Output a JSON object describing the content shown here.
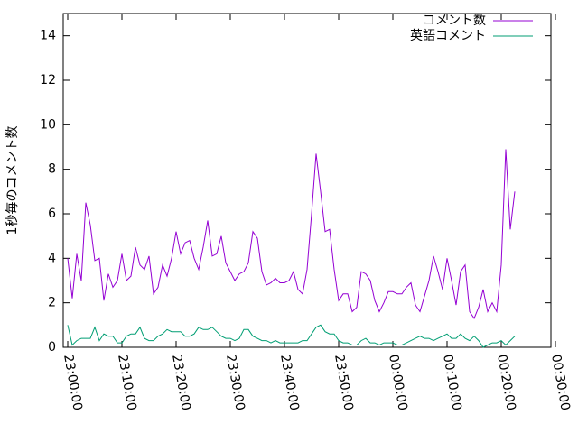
{
  "chart_data": {
    "type": "line",
    "ylabel": "1秒毎のコメント数",
    "x": [
      "23:00:00",
      "23:00:50",
      "23:01:40",
      "23:02:30",
      "23:03:20",
      "23:04:10",
      "23:05:00",
      "23:05:50",
      "23:06:40",
      "23:07:30",
      "23:08:20",
      "23:09:10",
      "23:10:00",
      "23:10:50",
      "23:11:40",
      "23:12:30",
      "23:13:20",
      "23:14:10",
      "23:15:00",
      "23:15:50",
      "23:16:40",
      "23:17:30",
      "23:18:20",
      "23:19:10",
      "23:20:00",
      "23:20:50",
      "23:21:40",
      "23:22:30",
      "23:23:20",
      "23:24:10",
      "23:25:00",
      "23:25:50",
      "23:26:40",
      "23:27:30",
      "23:28:20",
      "23:29:10",
      "23:30:00",
      "23:30:50",
      "23:31:40",
      "23:32:30",
      "23:33:20",
      "23:34:10",
      "23:35:00",
      "23:35:50",
      "23:36:40",
      "23:37:30",
      "23:38:20",
      "23:39:10",
      "23:40:00",
      "23:40:50",
      "23:41:40",
      "23:42:30",
      "23:43:20",
      "23:44:10",
      "23:45:00",
      "23:45:50",
      "23:46:40",
      "23:47:30",
      "23:48:20",
      "23:49:10",
      "23:50:00",
      "23:50:50",
      "23:51:40",
      "23:52:30",
      "23:53:20",
      "23:54:10",
      "23:55:00",
      "23:55:50",
      "23:56:40",
      "23:57:30",
      "23:58:20",
      "23:59:10",
      "00:00:00",
      "00:00:50",
      "00:01:40",
      "00:02:30",
      "00:03:20",
      "00:04:10",
      "00:05:00",
      "00:05:50",
      "00:06:40",
      "00:07:30",
      "00:08:20",
      "00:09:10",
      "00:10:00",
      "00:10:50",
      "00:11:40",
      "00:12:30",
      "00:13:20",
      "00:14:10",
      "00:15:00",
      "00:15:50",
      "00:16:40",
      "00:17:30",
      "00:18:20",
      "00:19:10",
      "00:20:00",
      "00:20:50",
      "00:21:40",
      "00:22:30"
    ],
    "series": [
      {
        "name": "コメント数",
        "color": "#9400d3",
        "values": [
          4.0,
          2.2,
          4.2,
          3.0,
          6.5,
          5.5,
          3.9,
          4.0,
          2.1,
          3.3,
          2.7,
          3.0,
          4.2,
          3.0,
          3.2,
          4.5,
          3.7,
          3.5,
          4.1,
          2.4,
          2.7,
          3.7,
          3.2,
          4.0,
          5.2,
          4.2,
          4.7,
          4.8,
          4.0,
          3.5,
          4.5,
          5.7,
          4.1,
          4.2,
          5.0,
          3.8,
          3.4,
          3.0,
          3.3,
          3.4,
          3.8,
          5.2,
          4.9,
          3.4,
          2.8,
          2.9,
          3.1,
          2.9,
          2.9,
          3.0,
          3.4,
          2.6,
          2.4,
          3.5,
          6.0,
          8.7,
          7.0,
          5.2,
          5.3,
          3.5,
          2.1,
          2.4,
          2.4,
          1.6,
          1.8,
          3.4,
          3.3,
          3.0,
          2.1,
          1.6,
          2.0,
          2.5,
          2.5,
          2.4,
          2.4,
          2.7,
          2.9,
          1.9,
          1.6,
          2.3,
          3.0,
          4.1,
          3.4,
          2.6,
          4.0,
          3.0,
          1.9,
          3.4,
          3.7,
          1.6,
          1.3,
          1.8,
          2.6,
          1.6,
          2.0,
          1.6,
          3.7,
          8.9,
          5.3,
          7.0
        ]
      },
      {
        "name": "英語コメント",
        "color": "#009e73",
        "values": [
          1.0,
          0.1,
          0.3,
          0.4,
          0.4,
          0.4,
          0.9,
          0.3,
          0.6,
          0.5,
          0.5,
          0.2,
          0.2,
          0.5,
          0.6,
          0.6,
          0.9,
          0.4,
          0.3,
          0.3,
          0.5,
          0.6,
          0.8,
          0.7,
          0.7,
          0.7,
          0.5,
          0.5,
          0.6,
          0.9,
          0.8,
          0.8,
          0.9,
          0.7,
          0.5,
          0.4,
          0.4,
          0.3,
          0.4,
          0.8,
          0.8,
          0.5,
          0.4,
          0.3,
          0.3,
          0.2,
          0.3,
          0.2,
          0.2,
          0.2,
          0.2,
          0.2,
          0.3,
          0.3,
          0.6,
          0.9,
          1.0,
          0.7,
          0.6,
          0.6,
          0.3,
          0.2,
          0.2,
          0.1,
          0.1,
          0.3,
          0.4,
          0.2,
          0.2,
          0.1,
          0.2,
          0.2,
          0.2,
          0.1,
          0.1,
          0.2,
          0.3,
          0.4,
          0.5,
          0.4,
          0.4,
          0.3,
          0.4,
          0.5,
          0.6,
          0.4,
          0.4,
          0.6,
          0.4,
          0.3,
          0.5,
          0.3,
          0.0,
          0.1,
          0.2,
          0.2,
          0.3,
          0.1,
          0.3,
          0.5
        ]
      }
    ],
    "xlim": [
      "22:59:10",
      "00:29:10"
    ],
    "xticks": [
      "23:00:00",
      "23:10:00",
      "23:20:00",
      "23:30:00",
      "23:40:00",
      "23:50:00",
      "00:00:00",
      "00:10:00",
      "00:20:00",
      "00:30:00"
    ],
    "ylim": [
      0,
      15
    ],
    "yticks": [
      0,
      2,
      4,
      6,
      8,
      10,
      12,
      14
    ],
    "legend": "top right"
  }
}
